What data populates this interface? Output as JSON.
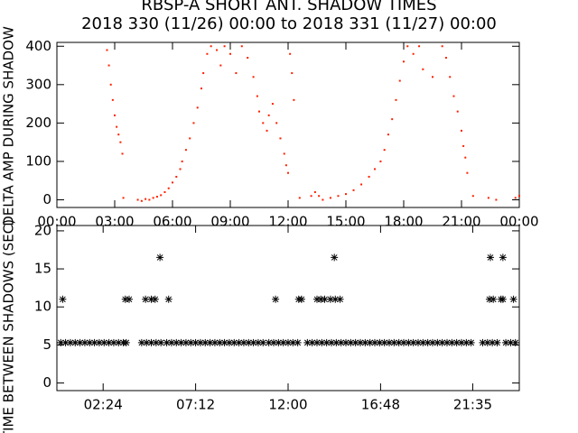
{
  "chart_data": [
    {
      "type": "scatter",
      "title": "RBSP-A SHORT ANT. SHADOW TIMES",
      "subtitle": "2018 330 (11/26) 00:00 to 2018 331 (11/27) 00:00",
      "ylabel": "DELTA AMP DURING SHADOW",
      "color": "#ff2000",
      "x": [
        2.6,
        2.7,
        2.8,
        2.9,
        3.0,
        3.1,
        3.2,
        3.3,
        3.4,
        3.45,
        4.2,
        4.4,
        4.6,
        4.8,
        5.0,
        5.2,
        5.4,
        5.6,
        5.8,
        6.0,
        6.2,
        6.4,
        6.5,
        6.7,
        6.9,
        7.1,
        7.3,
        7.5,
        7.6,
        7.8,
        8.0,
        8.3,
        8.5,
        8.7,
        9.0,
        9.3,
        9.6,
        9.9,
        10.2,
        10.4,
        10.5,
        10.7,
        10.9,
        11.0,
        11.2,
        11.4,
        11.6,
        11.8,
        11.9,
        12.0,
        12.1,
        12.2,
        12.3,
        12.6,
        13.2,
        13.4,
        13.6,
        13.8,
        14.2,
        14.6,
        15.0,
        15.4,
        15.8,
        16.2,
        16.5,
        16.8,
        17.0,
        17.2,
        17.4,
        17.6,
        17.8,
        18.0,
        18.2,
        18.5,
        18.8,
        19.0,
        19.5,
        20.0,
        20.2,
        20.4,
        20.6,
        20.8,
        21.0,
        21.1,
        21.2,
        21.3,
        21.6,
        22.4,
        22.8,
        23.8,
        24.0
      ],
      "values": [
        390,
        350,
        300,
        260,
        220,
        190,
        170,
        150,
        120,
        5,
        0,
        -3,
        2,
        0,
        5,
        8,
        12,
        20,
        30,
        45,
        60,
        80,
        100,
        130,
        160,
        200,
        240,
        290,
        330,
        380,
        400,
        390,
        350,
        400,
        380,
        330,
        400,
        370,
        320,
        270,
        230,
        200,
        180,
        220,
        250,
        200,
        160,
        120,
        90,
        70,
        380,
        330,
        260,
        5,
        10,
        20,
        10,
        0,
        5,
        10,
        15,
        25,
        40,
        60,
        80,
        100,
        130,
        170,
        210,
        260,
        310,
        360,
        400,
        380,
        400,
        340,
        320,
        400,
        370,
        320,
        270,
        230,
        180,
        140,
        110,
        70,
        10,
        5,
        0,
        5,
        10
      ],
      "xlim": [
        0,
        24
      ],
      "ylim": [
        -20,
        410
      ],
      "xticks": [
        {
          "value": 0,
          "label": "00:00"
        },
        {
          "value": 3,
          "label": "03:00"
        },
        {
          "value": 6,
          "label": "06:00"
        },
        {
          "value": 9,
          "label": "09:00"
        },
        {
          "value": 12,
          "label": "12:00"
        },
        {
          "value": 15,
          "label": "15:00"
        },
        {
          "value": 18,
          "label": "18:00"
        },
        {
          "value": 21,
          "label": "21:00"
        },
        {
          "value": 24,
          "label": "00:00"
        }
      ],
      "yticks": [
        0,
        100,
        200,
        300,
        400
      ]
    },
    {
      "type": "asterisk",
      "ylabel": "TIME BETWEEN SHADOWS (SEC)",
      "color": "#000000",
      "x": [
        0.2,
        0.45,
        0.7,
        0.95,
        1.2,
        1.45,
        1.7,
        1.95,
        2.2,
        2.45,
        2.7,
        2.95,
        3.2,
        3.45,
        3.6,
        4.4,
        4.65,
        4.9,
        5.15,
        5.4,
        5.7,
        5.95,
        6.2,
        6.45,
        6.7,
        6.95,
        7.2,
        7.45,
        7.7,
        7.95,
        8.2,
        8.45,
        8.7,
        8.95,
        9.2,
        9.45,
        9.7,
        9.95,
        10.2,
        10.45,
        10.7,
        11.0,
        11.25,
        11.5,
        11.75,
        12.0,
        12.25,
        12.5,
        13.0,
        13.25,
        13.5,
        13.75,
        14.0,
        14.25,
        14.5,
        14.75,
        15.0,
        15.25,
        15.5,
        15.75,
        16.0,
        16.25,
        16.5,
        16.75,
        17.0,
        17.25,
        17.5,
        17.75,
        18.0,
        18.25,
        18.5,
        18.75,
        19.0,
        19.25,
        19.5,
        19.75,
        20.0,
        20.25,
        20.5,
        20.75,
        21.0,
        21.25,
        21.5,
        22.1,
        22.35,
        22.6,
        22.85,
        23.3,
        23.55,
        23.8,
        0.3,
        3.55,
        3.75,
        4.6,
        4.9,
        5.1,
        5.8,
        11.35,
        12.55,
        12.7,
        13.5,
        13.7,
        13.9,
        14.2,
        14.45,
        14.7,
        22.45,
        22.65,
        23.05,
        23.15,
        23.7,
        5.35,
        14.4,
        22.5,
        23.15
      ],
      "values": [
        5.3,
        5.3,
        5.3,
        5.3,
        5.3,
        5.3,
        5.3,
        5.3,
        5.3,
        5.3,
        5.3,
        5.3,
        5.3,
        5.3,
        5.3,
        5.3,
        5.3,
        5.3,
        5.3,
        5.3,
        5.3,
        5.3,
        5.3,
        5.3,
        5.3,
        5.3,
        5.3,
        5.3,
        5.3,
        5.3,
        5.3,
        5.3,
        5.3,
        5.3,
        5.3,
        5.3,
        5.3,
        5.3,
        5.3,
        5.3,
        5.3,
        5.3,
        5.3,
        5.3,
        5.3,
        5.3,
        5.3,
        5.3,
        5.3,
        5.3,
        5.3,
        5.3,
        5.3,
        5.3,
        5.3,
        5.3,
        5.3,
        5.3,
        5.3,
        5.3,
        5.3,
        5.3,
        5.3,
        5.3,
        5.3,
        5.3,
        5.3,
        5.3,
        5.3,
        5.3,
        5.3,
        5.3,
        5.3,
        5.3,
        5.3,
        5.3,
        5.3,
        5.3,
        5.3,
        5.3,
        5.3,
        5.3,
        5.3,
        5.3,
        5.3,
        5.3,
        5.3,
        5.3,
        5.3,
        5.3,
        11,
        11,
        11,
        11,
        11,
        11,
        11,
        11,
        11,
        11,
        11,
        11,
        11,
        11,
        11,
        11,
        11,
        11,
        11,
        11,
        11,
        16.5,
        16.5,
        16.5,
        16.5
      ],
      "xlim": [
        0,
        24
      ],
      "ylim": [
        -1,
        20.7
      ],
      "xticks": [
        {
          "value": 2.4,
          "label": "02:24"
        },
        {
          "value": 7.2,
          "label": "07:12"
        },
        {
          "value": 12,
          "label": "12:00"
        },
        {
          "value": 16.8,
          "label": "16:48"
        },
        {
          "value": 21.583,
          "label": "21:35"
        }
      ],
      "yticks": [
        0,
        5,
        10,
        15,
        20
      ]
    }
  ]
}
